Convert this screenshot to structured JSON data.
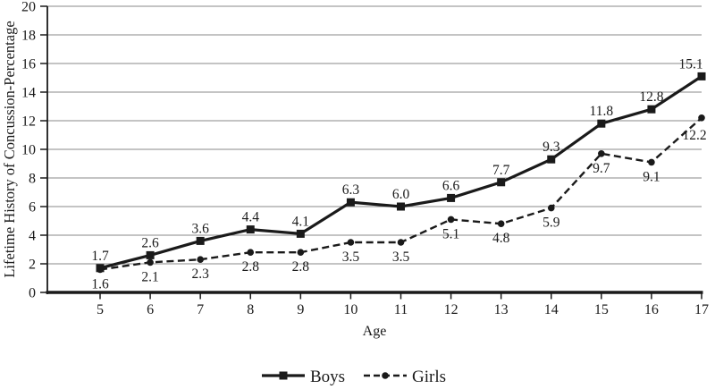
{
  "chart_data": {
    "type": "line",
    "title": "",
    "xlabel": "Age",
    "ylabel": "Lifetime History of Concussion-Percentage",
    "x": [
      5,
      6,
      7,
      8,
      9,
      10,
      11,
      12,
      13,
      14,
      15,
      16,
      17
    ],
    "xticks": [
      "5",
      "6",
      "7",
      "8",
      "9",
      "10",
      "11",
      "12",
      "13",
      "14",
      "15",
      "16",
      "17"
    ],
    "ylim": [
      0,
      20
    ],
    "ytick_step": 2,
    "yticks": [
      "0",
      "2",
      "4",
      "6",
      "8",
      "10",
      "12",
      "14",
      "16",
      "18",
      "20"
    ],
    "grid": "horizontal",
    "legend_position": "bottom-center",
    "series": [
      {
        "name": "Boys",
        "values": [
          1.7,
          2.6,
          3.6,
          4.4,
          4.1,
          6.3,
          6.0,
          6.6,
          7.7,
          9.3,
          11.8,
          12.8,
          15.1
        ],
        "data_labels": [
          "1.7",
          "2.6",
          "3.6",
          "4.4",
          "4.1",
          "6.3",
          "6.0",
          "6.6",
          "7.7",
          "9.3",
          "11.8",
          "12.8",
          "15.1"
        ],
        "line_style": "solid",
        "marker": "square",
        "label_position": "above"
      },
      {
        "name": "Girls",
        "values": [
          1.6,
          2.1,
          2.3,
          2.8,
          2.8,
          3.5,
          3.5,
          5.1,
          4.8,
          5.9,
          9.7,
          9.1,
          12.2
        ],
        "data_labels": [
          "1.6",
          "2.1",
          "2.3",
          "2.8",
          "2.8",
          "3.5",
          "3.5",
          "5.1",
          "4.8",
          "5.9",
          "9.7",
          "9.1",
          "12.2"
        ],
        "line_style": "dashed",
        "marker": "circle",
        "label_position": "below"
      }
    ],
    "colors": {
      "series_line": "#1a1a1a",
      "grid": "#8a8a8a",
      "axis": "#1a1a1a",
      "text": "#1a1a1a",
      "background": "#ffffff"
    }
  }
}
